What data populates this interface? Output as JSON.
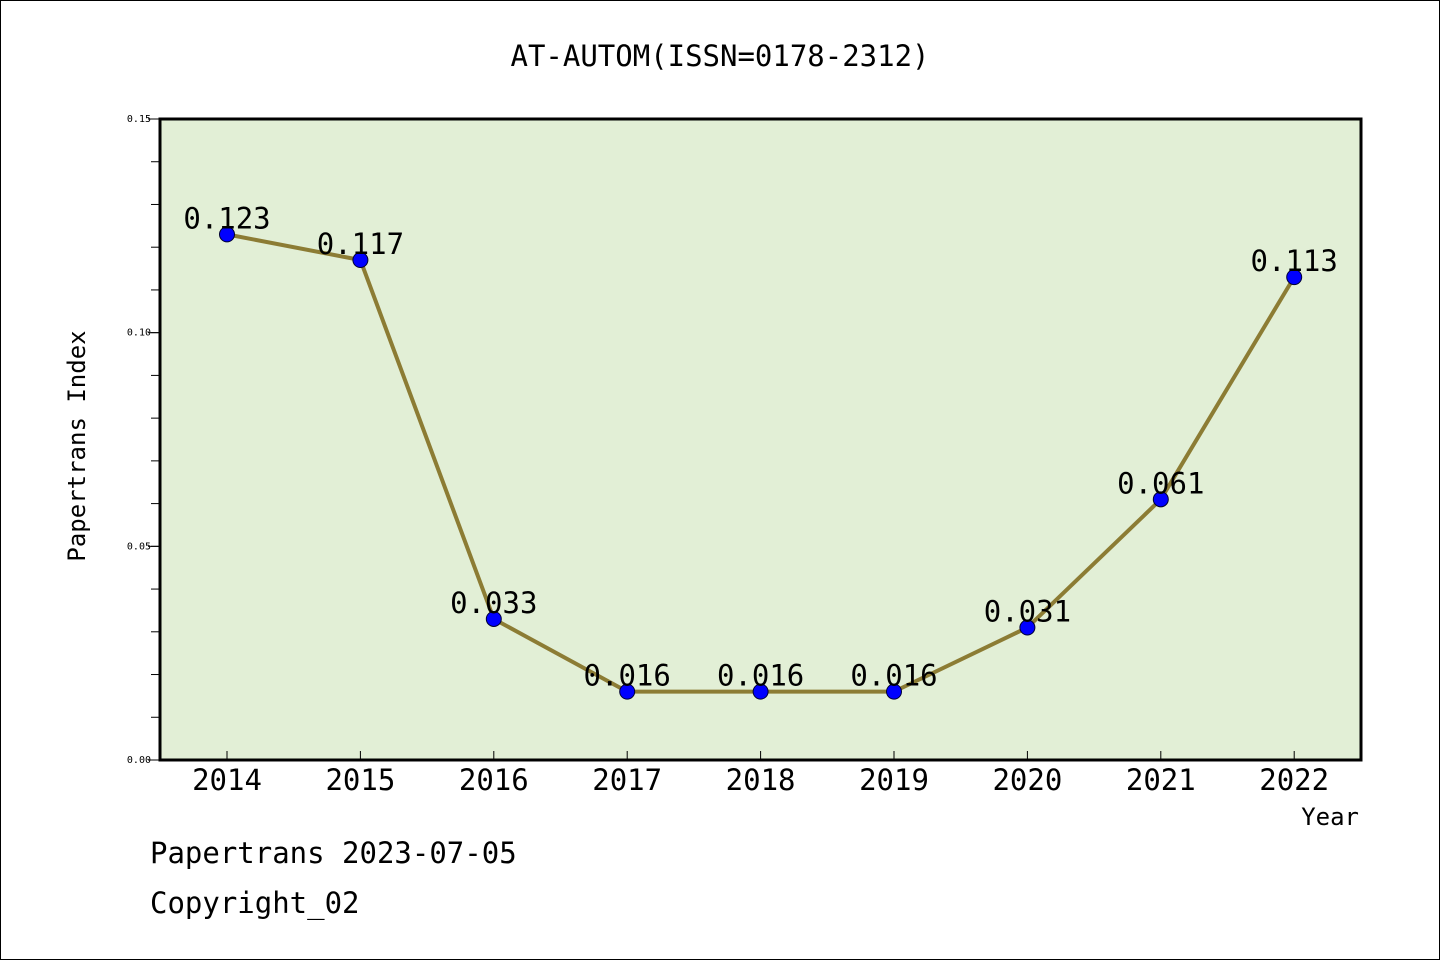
{
  "chart_data": {
    "type": "line",
    "title": "AT-AUTOM(ISSN=0178-2312)",
    "xlabel": "Year",
    "ylabel": "Papertrans Index",
    "x": [
      "2014",
      "2015",
      "2016",
      "2017",
      "2018",
      "2019",
      "2020",
      "2021",
      "2022"
    ],
    "values": [
      0.123,
      0.117,
      0.033,
      0.016,
      0.016,
      0.016,
      0.031,
      0.061,
      0.113
    ],
    "data_labels": [
      "0.123",
      "0.117",
      "0.033",
      "0.016",
      "0.016",
      "0.016",
      "0.031",
      "0.061",
      "0.113"
    ],
    "ylim": [
      0,
      0.15
    ],
    "yticks": [
      0.0,
      0.05,
      0.1,
      0.15
    ],
    "ytick_labels": [
      "0.00",
      "0.05",
      "0.10",
      "0.15"
    ],
    "grid": false,
    "colors": {
      "line": "#8c7c34",
      "marker": "#0000ff",
      "plot_background": "#e2efd6"
    }
  },
  "footer": {
    "line1": "Papertrans 2023-07-05",
    "line2": "Copyright_02"
  }
}
